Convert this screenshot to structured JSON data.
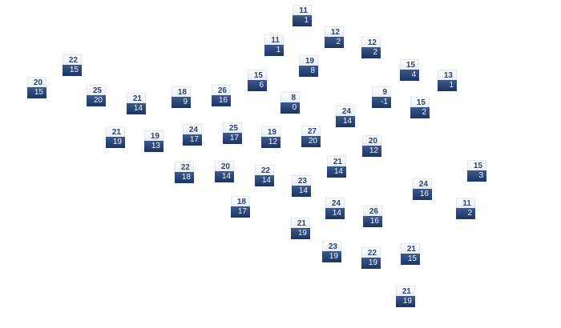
{
  "colors": {
    "high_text": "#2c4275",
    "low_background": "#1d3461",
    "low_text": "#f0f3f8"
  },
  "markers": [
    {
      "high": "11",
      "low": "1"
    },
    {
      "high": "11",
      "low": "1"
    },
    {
      "high": "12",
      "low": "2"
    },
    {
      "high": "12",
      "low": "2"
    },
    {
      "high": "22",
      "low": "15"
    },
    {
      "high": "20",
      "low": "15"
    },
    {
      "high": "19",
      "low": "8"
    },
    {
      "high": "15",
      "low": "4"
    },
    {
      "high": "13",
      "low": "1"
    },
    {
      "high": "25",
      "low": "20"
    },
    {
      "high": "21",
      "low": "14"
    },
    {
      "high": "18",
      "low": "9"
    },
    {
      "high": "26",
      "low": "16"
    },
    {
      "high": "15",
      "low": "6"
    },
    {
      "high": "8",
      "low": "0"
    },
    {
      "high": "9",
      "low": "-1"
    },
    {
      "high": "15",
      "low": "2"
    },
    {
      "high": "24",
      "low": "14"
    },
    {
      "high": "21",
      "low": "19"
    },
    {
      "high": "19",
      "low": "13"
    },
    {
      "high": "24",
      "low": "17"
    },
    {
      "high": "25",
      "low": "17"
    },
    {
      "high": "19",
      "low": "12"
    },
    {
      "high": "27",
      "low": "20"
    },
    {
      "high": "20",
      "low": "12"
    },
    {
      "high": "21",
      "low": "14"
    },
    {
      "high": "22",
      "low": "18"
    },
    {
      "high": "20",
      "low": "14"
    },
    {
      "high": "22",
      "low": "14"
    },
    {
      "high": "23",
      "low": "14"
    },
    {
      "high": "15",
      "low": "3"
    },
    {
      "high": "24",
      "low": "16"
    },
    {
      "high": "18",
      "low": "17"
    },
    {
      "high": "24",
      "low": "14"
    },
    {
      "high": "11",
      "low": "2"
    },
    {
      "high": "26",
      "low": "16"
    },
    {
      "high": "21",
      "low": "19"
    },
    {
      "high": "23",
      "low": "19"
    },
    {
      "high": "22",
      "low": "19"
    },
    {
      "high": "21",
      "low": "15"
    },
    {
      "high": "21",
      "low": "19"
    }
  ]
}
